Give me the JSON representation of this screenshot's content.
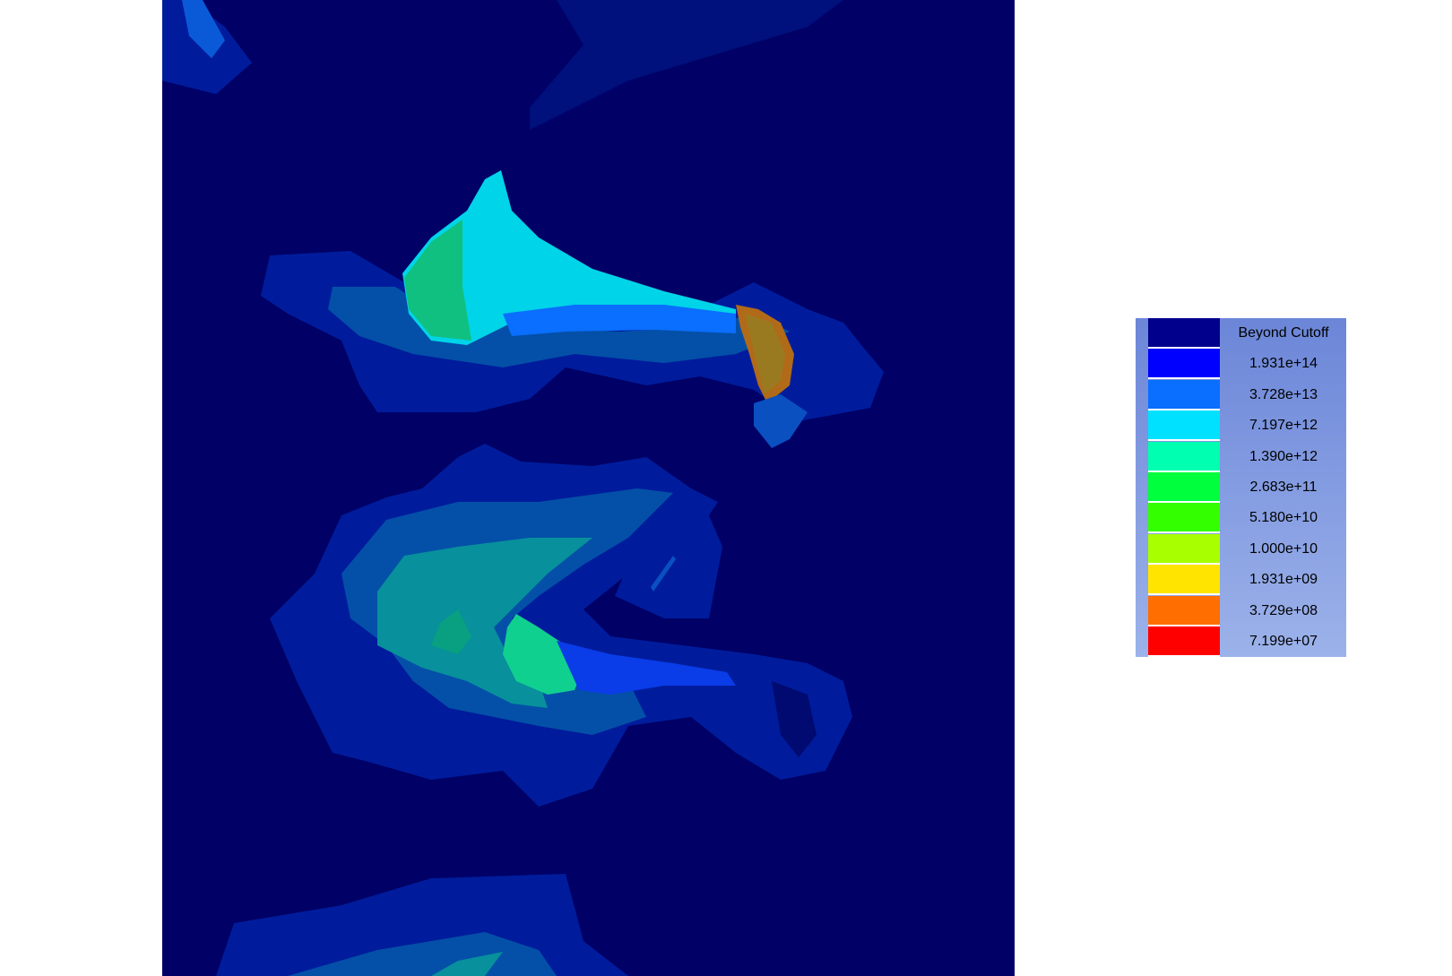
{
  "legend": {
    "entries": [
      {
        "label": "Beyond Cutoff",
        "color": "#00008c"
      },
      {
        "label": "1.931e+14",
        "color": "#0000ff"
      },
      {
        "label": "3.728e+13",
        "color": "#0a6eff"
      },
      {
        "label": "7.197e+12",
        "color": "#00e0ff"
      },
      {
        "label": "1.390e+12",
        "color": "#00ffb0"
      },
      {
        "label": "2.683e+11",
        "color": "#00ff3c"
      },
      {
        "label": "5.180e+10",
        "color": "#34ff00"
      },
      {
        "label": "1.000e+10",
        "color": "#a8ff00"
      },
      {
        "label": "1.931e+09",
        "color": "#ffe400"
      },
      {
        "label": "3.729e+08",
        "color": "#ff6e00"
      },
      {
        "label": "7.199e+07",
        "color": "#ff0000"
      }
    ]
  },
  "colors": {
    "background": "#000066",
    "region_dark": "#001c9c",
    "region_mid": "#0450a8",
    "region_teal": "#08909c",
    "region_cyan": "#00d4e8",
    "region_green": "#10c080",
    "region_hot": "#c86a10"
  }
}
